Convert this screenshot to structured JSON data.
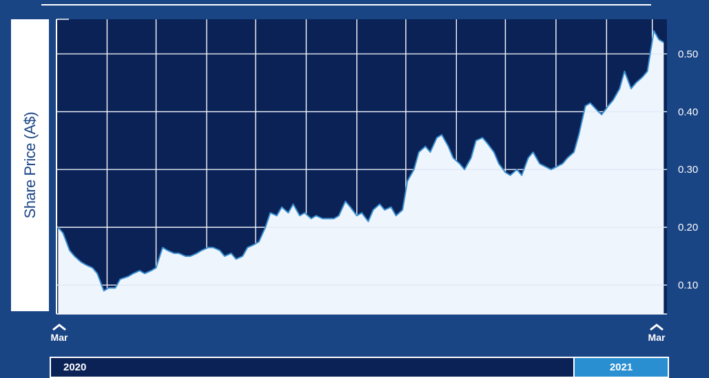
{
  "chart_data": {
    "type": "area",
    "ylabel": "Share Price (A$)",
    "yticks": [
      "0.10",
      "0.20",
      "0.30",
      "0.40",
      "0.50"
    ],
    "ylim": [
      0.05,
      0.56
    ],
    "xlim": [
      "2020-03-01",
      "2021-03-10"
    ],
    "grid": true,
    "x_markers": [
      {
        "label": "Mar",
        "date": "2020-03-01"
      },
      {
        "label": "Mar",
        "date": "2021-03-01"
      }
    ],
    "years": [
      "2020",
      "2021"
    ],
    "colors": {
      "background": "#0b2257",
      "fill": "#eef5fd",
      "line": "#3a8fd0",
      "grid": "#ffffff",
      "page": "#1a4585"
    },
    "series": [
      {
        "x": [
          "2020-03-02",
          "2020-03-05",
          "2020-03-09",
          "2020-03-12",
          "2020-03-16",
          "2020-03-19",
          "2020-03-23",
          "2020-03-26",
          "2020-03-30",
          "2020-04-02",
          "2020-04-06",
          "2020-04-09",
          "2020-04-14",
          "2020-04-17",
          "2020-04-21",
          "2020-04-24",
          "2020-04-28",
          "2020-05-01",
          "2020-05-05",
          "2020-05-08",
          "2020-05-12",
          "2020-05-15",
          "2020-05-19",
          "2020-05-22",
          "2020-05-26",
          "2020-05-29",
          "2020-06-02",
          "2020-06-05",
          "2020-06-09",
          "2020-06-12",
          "2020-06-16",
          "2020-06-19",
          "2020-06-23",
          "2020-06-26",
          "2020-06-30",
          "2020-07-03",
          "2020-07-07",
          "2020-07-10",
          "2020-07-14",
          "2020-07-17",
          "2020-07-21",
          "2020-07-24",
          "2020-07-28",
          "2020-07-31",
          "2020-08-04",
          "2020-08-07",
          "2020-08-11",
          "2020-08-14",
          "2020-08-18",
          "2020-08-21",
          "2020-08-25",
          "2020-08-28",
          "2020-09-01",
          "2020-09-04",
          "2020-09-08",
          "2020-09-11",
          "2020-09-15",
          "2020-09-18",
          "2020-09-22",
          "2020-09-25",
          "2020-09-29",
          "2020-10-02",
          "2020-10-06",
          "2020-10-09",
          "2020-10-13",
          "2020-10-16",
          "2020-10-20",
          "2020-10-23",
          "2020-10-27",
          "2020-10-30",
          "2020-11-03",
          "2020-11-06",
          "2020-11-10",
          "2020-11-13",
          "2020-11-17",
          "2020-11-20",
          "2020-11-24",
          "2020-11-27",
          "2020-12-01",
          "2020-12-04",
          "2020-12-08",
          "2020-12-11",
          "2020-12-15",
          "2020-12-18",
          "2020-12-22",
          "2020-12-29",
          "2021-01-05",
          "2021-01-08",
          "2021-01-12",
          "2021-01-15",
          "2021-01-19",
          "2021-01-22",
          "2021-01-27",
          "2021-01-29",
          "2021-02-02",
          "2021-02-05",
          "2021-02-09",
          "2021-02-12",
          "2021-02-16",
          "2021-02-19",
          "2021-02-23",
          "2021-02-26",
          "2021-03-02",
          "2021-03-05",
          "2021-03-08"
        ],
        "y": [
          0.2,
          0.19,
          0.16,
          0.15,
          0.14,
          0.135,
          0.13,
          0.12,
          0.09,
          0.095,
          0.095,
          0.11,
          0.115,
          0.12,
          0.125,
          0.12,
          0.125,
          0.13,
          0.165,
          0.16,
          0.155,
          0.155,
          0.15,
          0.15,
          0.155,
          0.16,
          0.165,
          0.165,
          0.16,
          0.15,
          0.155,
          0.145,
          0.15,
          0.165,
          0.17,
          0.175,
          0.2,
          0.225,
          0.22,
          0.235,
          0.225,
          0.24,
          0.22,
          0.225,
          0.215,
          0.22,
          0.215,
          0.215,
          0.215,
          0.22,
          0.245,
          0.235,
          0.22,
          0.225,
          0.21,
          0.23,
          0.24,
          0.23,
          0.235,
          0.22,
          0.23,
          0.28,
          0.3,
          0.33,
          0.34,
          0.33,
          0.355,
          0.36,
          0.34,
          0.32,
          0.31,
          0.3,
          0.32,
          0.35,
          0.355,
          0.345,
          0.33,
          0.31,
          0.295,
          0.29,
          0.3,
          0.29,
          0.32,
          0.33,
          0.31,
          0.3,
          0.31,
          0.32,
          0.33,
          0.36,
          0.41,
          0.415,
          0.4,
          0.395,
          0.41,
          0.42,
          0.44,
          0.47,
          0.44,
          0.45,
          0.46,
          0.47,
          0.54,
          0.525,
          0.52
        ]
      }
    ]
  }
}
